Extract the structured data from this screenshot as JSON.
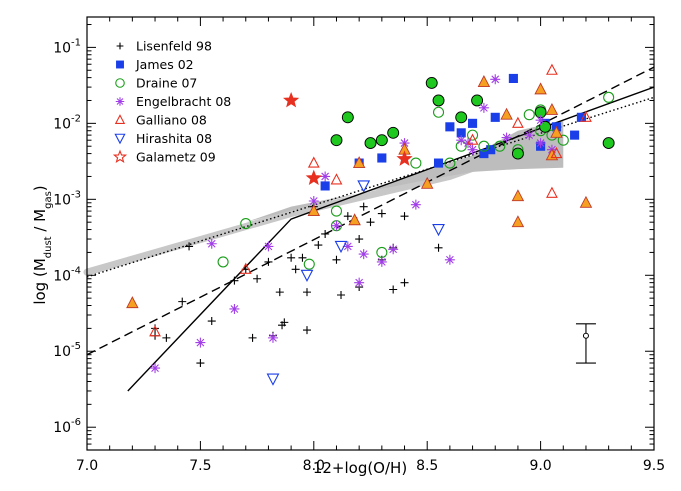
{
  "chart_data": {
    "type": "scatter",
    "xlabel": "12+log(O/H)",
    "ylabel_parts": {
      "lead": "log (M",
      "sub1": "dust",
      "mid": " / M",
      "sub2": "gas",
      "tail": ")"
    },
    "xlim": [
      7.0,
      9.5
    ],
    "ylim_log10": [
      -6.3,
      -0.6
    ],
    "y_scale": "log",
    "x_ticks": [
      "7.0",
      "7.5",
      "8.0",
      "8.5",
      "9.0",
      "9.5"
    ],
    "y_ticks": [
      {
        "value": 1e-06,
        "base": "10",
        "exp": "-6"
      },
      {
        "value": 1e-05,
        "base": "10",
        "exp": "-5"
      },
      {
        "value": 0.0001,
        "base": "10",
        "exp": "-4"
      },
      {
        "value": 0.001,
        "base": "10",
        "exp": "-3"
      },
      {
        "value": 0.01,
        "base": "10",
        "exp": "-2"
      },
      {
        "value": 0.1,
        "base": "10",
        "exp": "-1"
      }
    ],
    "legend_position": "top-left",
    "series": [
      {
        "name": "Lisenfeld 98",
        "marker": "plus",
        "color": "#000000",
        "points": [
          [
            7.3,
            2e-05
          ],
          [
            7.3,
            1.6e-05
          ],
          [
            7.35,
            1.5e-05
          ],
          [
            7.42,
            4.5e-05
          ],
          [
            7.45,
            0.00024
          ],
          [
            7.5,
            7e-06
          ],
          [
            7.55,
            2.5e-05
          ],
          [
            7.65,
            8.5e-05
          ],
          [
            7.7,
            0.00012
          ],
          [
            7.73,
            1.5e-05
          ],
          [
            7.75,
            9e-05
          ],
          [
            7.8,
            0.00015
          ],
          [
            7.82,
            1.6e-05
          ],
          [
            7.85,
            6e-05
          ],
          [
            7.86,
            2.2e-05
          ],
          [
            7.87,
            2.4e-05
          ],
          [
            7.9,
            0.00017
          ],
          [
            7.92,
            0.00012
          ],
          [
            7.95,
            0.00017
          ],
          [
            7.97,
            6e-05
          ],
          [
            7.97,
            1.9e-05
          ],
          [
            8.0,
            0.0008
          ],
          [
            8.02,
            0.00025
          ],
          [
            8.05,
            0.00035
          ],
          [
            8.1,
            0.00016
          ],
          [
            8.12,
            5.5e-05
          ],
          [
            8.15,
            0.0006
          ],
          [
            8.2,
            0.0003
          ],
          [
            8.2,
            7e-05
          ],
          [
            8.22,
            0.0008
          ],
          [
            8.25,
            0.0005
          ],
          [
            8.3,
            0.00016
          ],
          [
            8.3,
            0.00065
          ],
          [
            8.35,
            0.00023
          ],
          [
            8.35,
            6.5e-05
          ],
          [
            8.4,
            0.0006
          ],
          [
            8.4,
            8e-05
          ],
          [
            8.55,
            0.00023
          ]
        ]
      },
      {
        "name": "James 02",
        "marker": "square",
        "color": "#1a3ee8",
        "points": [
          [
            8.2,
            0.003
          ],
          [
            8.3,
            0.0035
          ],
          [
            8.55,
            0.003
          ],
          [
            8.6,
            0.009
          ],
          [
            8.65,
            0.0075
          ],
          [
            8.7,
            0.01
          ],
          [
            8.8,
            0.012
          ],
          [
            8.75,
            0.004
          ],
          [
            8.88,
            0.039
          ],
          [
            9.0,
            0.005
          ],
          [
            9.02,
            0.01
          ],
          [
            9.07,
            0.009
          ],
          [
            9.15,
            0.007
          ],
          [
            9.18,
            0.012
          ],
          [
            8.05,
            0.0015
          ],
          [
            8.78,
            0.0045
          ]
        ]
      },
      {
        "name": "Draine 07",
        "marker": "circle",
        "color": "#1a9e1a",
        "points": [
          [
            7.6,
            0.00015
          ],
          [
            7.7,
            0.00048
          ],
          [
            7.98,
            0.00014
          ],
          [
            8.1,
            0.00045
          ],
          [
            8.1,
            0.0007
          ],
          [
            8.3,
            0.0002
          ],
          [
            8.45,
            0.003
          ],
          [
            8.55,
            0.014
          ],
          [
            8.6,
            0.003
          ],
          [
            8.65,
            0.005
          ],
          [
            8.7,
            0.007
          ],
          [
            8.75,
            0.005
          ],
          [
            8.9,
            0.0045
          ],
          [
            8.95,
            0.013
          ],
          [
            9.0,
            0.015
          ],
          [
            9.0,
            0.008
          ],
          [
            9.05,
            0.007
          ],
          [
            9.1,
            0.006
          ],
          [
            9.3,
            0.022
          ],
          [
            8.82,
            0.005
          ]
        ]
      },
      {
        "name": "Draine 07 (filled)",
        "marker": "filledcircle",
        "color": "#1ec81e",
        "points": [
          [
            8.1,
            0.006
          ],
          [
            8.15,
            0.012
          ],
          [
            8.25,
            0.0055
          ],
          [
            8.3,
            0.006
          ],
          [
            8.35,
            0.0075
          ],
          [
            8.52,
            0.034
          ],
          [
            8.55,
            0.02
          ],
          [
            8.65,
            0.012
          ],
          [
            8.9,
            0.004
          ],
          [
            9.0,
            0.014
          ],
          [
            9.02,
            0.009
          ],
          [
            9.3,
            0.0055
          ],
          [
            8.72,
            0.02
          ]
        ]
      },
      {
        "name": "Engelbracht 08",
        "marker": "asterisk",
        "color": "#a23fe8",
        "points": [
          [
            7.3,
            6e-06
          ],
          [
            7.5,
            1.3e-05
          ],
          [
            7.55,
            0.00026
          ],
          [
            7.65,
            3.6e-05
          ],
          [
            7.8,
            0.00024
          ],
          [
            7.82,
            1.5e-05
          ],
          [
            8.0,
            0.00095
          ],
          [
            8.05,
            0.002
          ],
          [
            8.1,
            0.00045
          ],
          [
            8.15,
            0.00024
          ],
          [
            8.2,
            8e-05
          ],
          [
            8.22,
            0.00019
          ],
          [
            8.3,
            0.00015
          ],
          [
            8.35,
            0.00022
          ],
          [
            8.4,
            0.0055
          ],
          [
            8.45,
            0.00085
          ],
          [
            8.6,
            0.00016
          ],
          [
            8.65,
            0.006
          ],
          [
            8.68,
            0.0055
          ],
          [
            8.7,
            0.0045
          ],
          [
            8.75,
            0.016
          ],
          [
            8.8,
            0.038
          ],
          [
            8.85,
            0.0065
          ],
          [
            8.95,
            0.007
          ],
          [
            9.0,
            0.0055
          ],
          [
            9.0,
            0.011
          ],
          [
            9.05,
            0.0045
          ]
        ]
      },
      {
        "name": "Galliano 08",
        "marker": "filledtriangle",
        "color": "#f5a020",
        "points": [
          [
            7.2,
            4.3e-05
          ],
          [
            8.0,
            0.0007
          ],
          [
            8.18,
            0.00053
          ],
          [
            8.2,
            0.003
          ],
          [
            8.4,
            0.0045
          ],
          [
            8.5,
            0.0016
          ],
          [
            8.75,
            0.035
          ],
          [
            8.9,
            0.0005
          ],
          [
            8.9,
            0.0011
          ],
          [
            9.0,
            0.028
          ],
          [
            9.05,
            0.0038
          ],
          [
            9.05,
            0.015
          ],
          [
            9.2,
            0.0009
          ],
          [
            8.85,
            0.013
          ],
          [
            9.07,
            0.0075
          ]
        ]
      },
      {
        "name": "Galliano 08 (open)",
        "marker": "opentriangle",
        "color": "#e83020",
        "points": [
          [
            7.3,
            1.8e-05
          ],
          [
            7.7,
            0.00012
          ],
          [
            8.0,
            0.003
          ],
          [
            8.1,
            0.0018
          ],
          [
            8.9,
            0.01
          ],
          [
            9.05,
            0.05
          ],
          [
            9.05,
            0.0012
          ],
          [
            9.07,
            0.004
          ],
          [
            9.2,
            0.012
          ],
          [
            8.7,
            0.006
          ]
        ]
      },
      {
        "name": "Hirashita 08",
        "marker": "downtriangle",
        "color": "#1a3ee8",
        "points": [
          [
            7.82,
            4.3e-06
          ],
          [
            7.97,
            0.0001
          ],
          [
            8.12,
            0.00024
          ],
          [
            8.22,
            0.0015
          ],
          [
            8.55,
            0.0004
          ]
        ]
      },
      {
        "name": "Galametz 09",
        "marker": "star",
        "color": "#e83020",
        "points": [
          [
            7.9,
            0.02
          ],
          [
            8.0,
            0.0019
          ],
          [
            8.4,
            0.0034
          ]
        ]
      }
    ],
    "legend": [
      {
        "label": "Lisenfeld 98",
        "marker": "plus",
        "color": "#000000",
        "filled": false
      },
      {
        "label": "James 02",
        "marker": "square",
        "color": "#1a3ee8",
        "filled": false
      },
      {
        "label": "Draine 07",
        "marker": "circle",
        "color": "#1a9e1a",
        "filled": false
      },
      {
        "label": "Engelbracht 08",
        "marker": "asterisk",
        "color": "#a23fe8",
        "filled": false
      },
      {
        "label": "Galliano 08",
        "marker": "opentriangle",
        "color": "#e83020",
        "filled": false
      },
      {
        "label": "Hirashita 08",
        "marker": "downtriangle",
        "color": "#1a3ee8",
        "filled": false
      },
      {
        "label": "Galametz 09",
        "marker": "openstar",
        "color": "#e83020",
        "filled": false
      }
    ],
    "lines": [
      {
        "style": "solid",
        "color": "#000000",
        "points": [
          [
            7.18,
            3e-06
          ],
          [
            7.9,
            0.00055
          ],
          [
            9.5,
            0.03
          ]
        ]
      },
      {
        "style": "dashed",
        "color": "#000000",
        "points": [
          [
            7.0,
            9e-06
          ],
          [
            9.5,
            0.055
          ]
        ]
      },
      {
        "style": "dotted",
        "color": "#000000",
        "points": [
          [
            7.0,
            9.5e-05
          ],
          [
            9.5,
            0.022
          ]
        ]
      }
    ],
    "light_band": {
      "color": "#c8c8c8",
      "points": [
        [
          7.0,
          0.00011
        ],
        [
          7.9,
          0.00065
        ],
        [
          8.6,
          0.002
        ],
        [
          9.05,
          0.006
        ]
      ]
    },
    "shaded_region": {
      "color": "#bdbdbd",
      "upper": [
        [
          7.7,
          0.0005
        ],
        [
          8.2,
          0.0012
        ],
        [
          8.7,
          0.0038
        ],
        [
          8.9,
          0.008
        ],
        [
          9.1,
          0.011
        ]
      ],
      "lower": [
        [
          9.1,
          0.0026
        ],
        [
          8.9,
          0.0025
        ],
        [
          8.7,
          0.0023
        ],
        [
          8.5,
          0.0018
        ],
        [
          8.2,
          0.0012
        ],
        [
          7.9,
          0.0008
        ],
        [
          7.7,
          0.0005
        ]
      ]
    },
    "error_bar": {
      "x": 9.2,
      "y": 1.6e-05,
      "ylow": 7e-06,
      "yhigh": 2.3e-05
    }
  }
}
